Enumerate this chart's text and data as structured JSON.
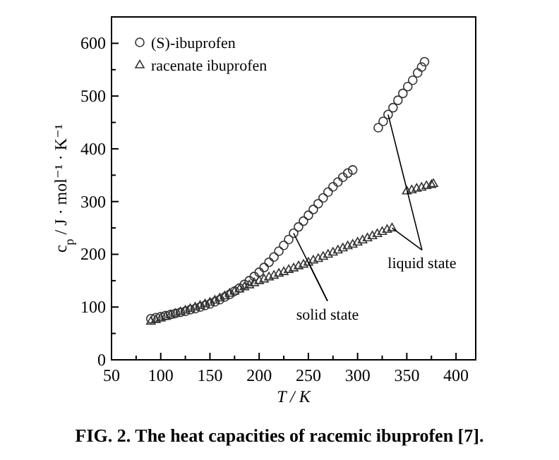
{
  "chart_data": {
    "type": "scatter",
    "title": "FIG. 2. The heat capacities of racemic ibuprofen [7].",
    "xlabel": "T / K",
    "ylabel": "c$_{p}$ / J · mol⁻¹ · K⁻¹",
    "xlim": [
      50,
      420
    ],
    "ylim": [
      0,
      650
    ],
    "xticks": [
      50,
      {
        "value": 75,
        "label": null
      },
      100,
      {
        "value": 125,
        "label": null
      },
      150,
      {
        "value": 175,
        "label": null
      },
      200,
      {
        "value": 225,
        "label": null
      },
      250,
      {
        "value": 275,
        "label": null
      },
      300,
      {
        "value": 325,
        "label": null
      },
      350,
      {
        "value": 375,
        "label": null
      },
      400
    ],
    "yticks": [
      0,
      {
        "value": 50,
        "label": null
      },
      100,
      {
        "value": 150,
        "label": null
      },
      200,
      {
        "value": 250,
        "label": null
      },
      300,
      {
        "value": 350,
        "label": null
      },
      400,
      {
        "value": 450,
        "label": null
      },
      500,
      {
        "value": 550,
        "label": null
      },
      600
    ],
    "legend": "top left",
    "grid": false,
    "series": [
      {
        "name": "(S)-ibuprofen",
        "color": "#333333",
        "marker": "circle",
        "x": [
          90,
          95,
          100,
          105,
          110,
          115,
          120,
          125,
          130,
          135,
          140,
          145,
          150,
          155,
          160,
          165,
          170,
          175,
          180,
          185,
          190,
          195,
          200,
          205,
          210,
          215,
          220,
          225,
          230,
          235,
          240,
          245,
          250,
          255,
          260,
          265,
          270,
          275,
          280,
          285,
          290,
          295,
          321,
          326,
          331,
          336,
          341,
          346,
          351,
          356,
          361,
          365,
          368
        ],
        "values": [
          78,
          80,
          82,
          84,
          86,
          88,
          90,
          92,
          95,
          97,
          100,
          103,
          106,
          110,
          114,
          119,
          124,
          130,
          136,
          143,
          150,
          158,
          166,
          175,
          185,
          195,
          206,
          217,
          228,
          240,
          252,
          263,
          274,
          285,
          296,
          307,
          318,
          328,
          337,
          346,
          354,
          360,
          440,
          452,
          465,
          478,
          492,
          505,
          518,
          530,
          544,
          555,
          565
        ]
      },
      {
        "name": "racenate ibuprofen",
        "color": "#333333",
        "marker": "triangle",
        "x": [
          90,
          95,
          100,
          105,
          110,
          115,
          120,
          125,
          130,
          135,
          140,
          145,
          150,
          155,
          160,
          165,
          170,
          175,
          180,
          185,
          190,
          195,
          200,
          205,
          210,
          215,
          220,
          225,
          230,
          235,
          240,
          245,
          250,
          255,
          260,
          265,
          270,
          275,
          280,
          285,
          290,
          295,
          300,
          305,
          310,
          315,
          320,
          325,
          330,
          335,
          350,
          355,
          360,
          365,
          370,
          375,
          377
        ],
        "values": [
          73,
          76,
          79,
          82,
          85,
          88,
          91,
          94,
          97,
          100,
          103,
          106,
          109,
          113,
          117,
          121,
          126,
          130,
          134,
          138,
          142,
          146,
          150,
          153,
          157,
          160,
          164,
          167,
          171,
          174,
          178,
          181,
          185,
          189,
          192,
          196,
          200,
          204,
          208,
          212,
          216,
          219,
          223,
          227,
          231,
          235,
          239,
          243,
          247,
          250,
          320,
          322,
          325,
          327,
          330,
          332,
          334
        ]
      }
    ],
    "annotations": [
      {
        "text": "solid state",
        "x": 235,
        "y": 240
      },
      {
        "text": "liquid state",
        "x": 331,
        "y": 465
      }
    ]
  }
}
